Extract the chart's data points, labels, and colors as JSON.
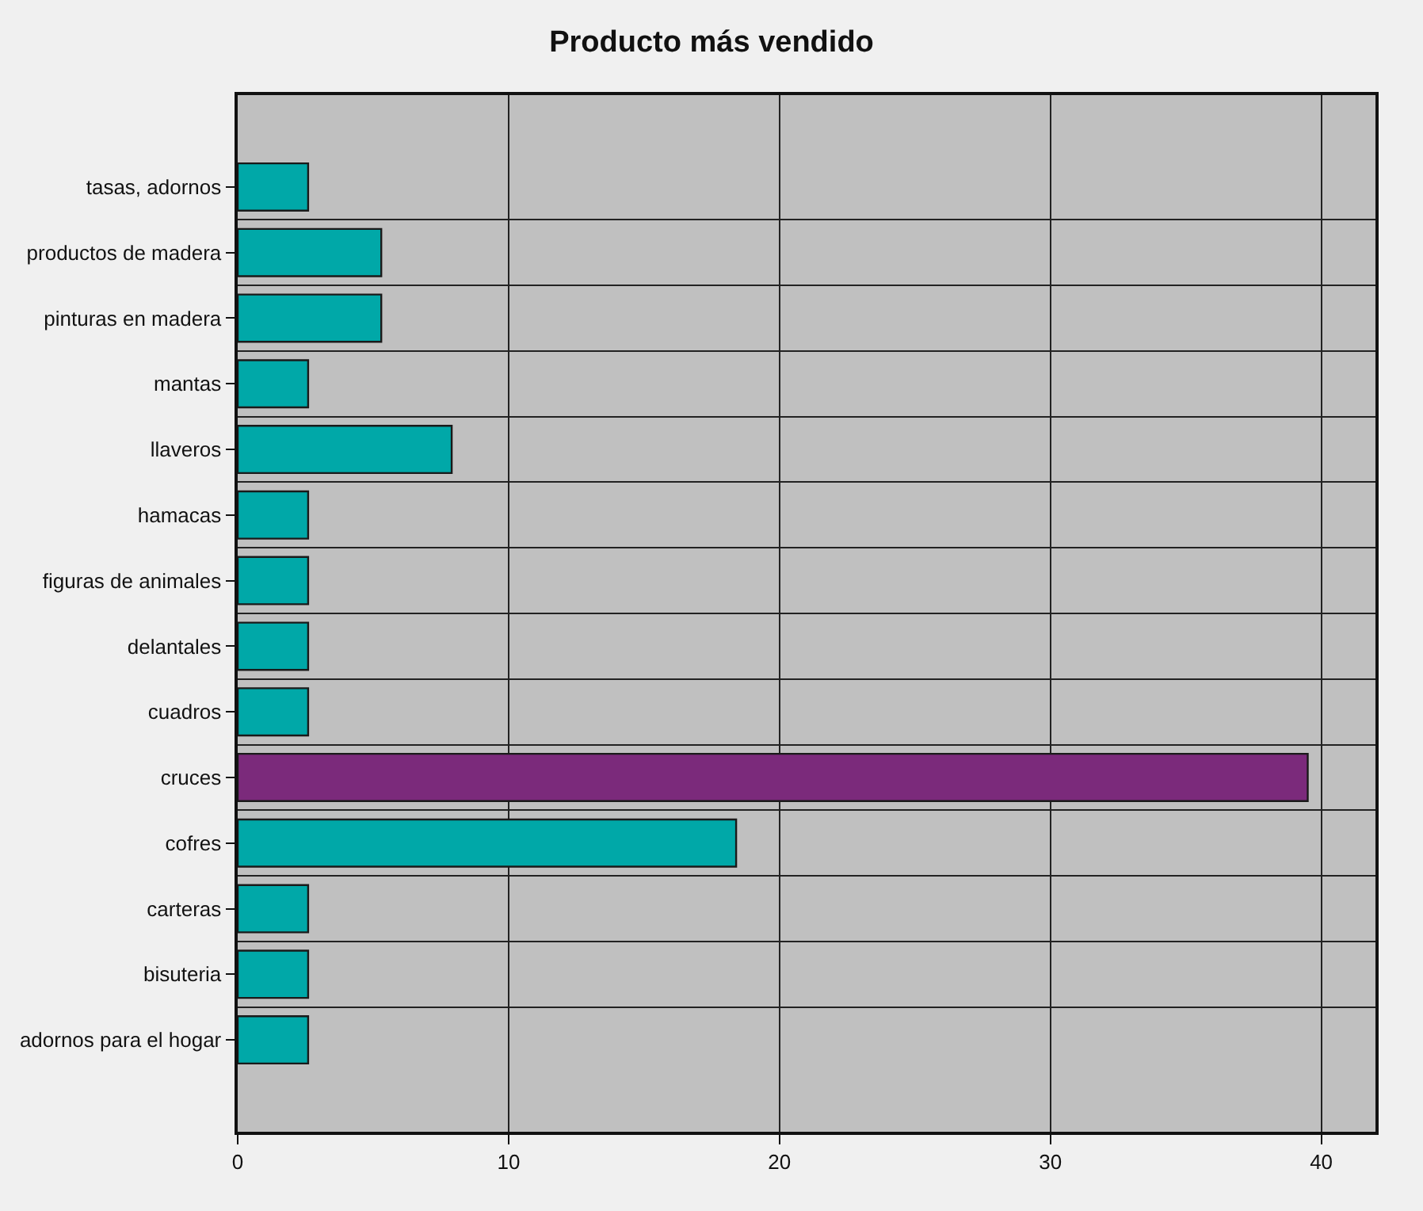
{
  "chart_data": {
    "type": "bar",
    "orientation": "horizontal",
    "title": "Producto más vendido",
    "categories": [
      "tasas, adornos",
      "productos de madera",
      "pinturas en madera",
      "mantas",
      "llaveros",
      "hamacas",
      "figuras de animales",
      "delantales",
      "cuadros",
      "cruces",
      "cofres",
      "carteras",
      "bisuteria",
      "adornos para el hogar"
    ],
    "values": [
      2.6,
      5.3,
      5.3,
      2.6,
      7.9,
      2.6,
      2.6,
      2.6,
      2.6,
      39.5,
      18.4,
      2.6,
      2.6,
      2.6
    ],
    "colors": [
      "#00a8a8",
      "#00a8a8",
      "#00a8a8",
      "#00a8a8",
      "#00a8a8",
      "#00a8a8",
      "#00a8a8",
      "#00a8a8",
      "#00a8a8",
      "#7b2a7b",
      "#00a8a8",
      "#00a8a8",
      "#00a8a8",
      "#00a8a8"
    ],
    "xlim": [
      0,
      42
    ],
    "xticks": [
      0,
      10,
      20,
      30,
      40
    ],
    "grid": true
  }
}
